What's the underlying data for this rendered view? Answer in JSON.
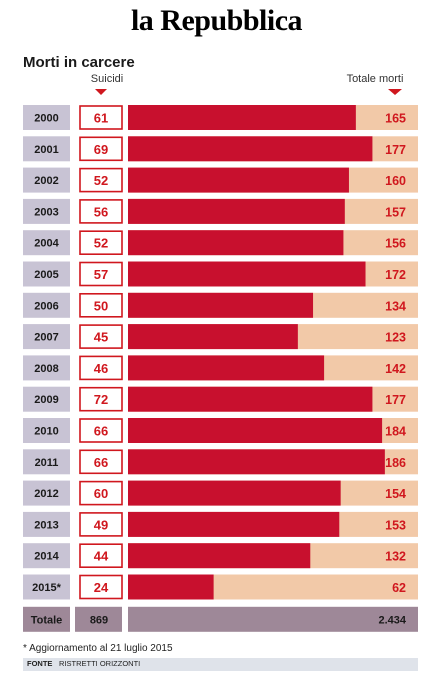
{
  "masthead": "la Repubblica",
  "chart_data": {
    "type": "bar",
    "title": "Morti in carcere",
    "categories": [
      "2000",
      "2001",
      "2002",
      "2003",
      "2004",
      "2005",
      "2006",
      "2007",
      "2008",
      "2009",
      "2010",
      "2011",
      "2012",
      "2013",
      "2014",
      "2015*"
    ],
    "series": [
      {
        "name": "Suicidi",
        "values": [
          61,
          69,
          52,
          56,
          52,
          57,
          50,
          45,
          46,
          72,
          66,
          66,
          60,
          49,
          44,
          24
        ]
      },
      {
        "name": "Totale morti",
        "values": [
          165,
          177,
          160,
          157,
          156,
          172,
          134,
          123,
          142,
          177,
          184,
          186,
          154,
          153,
          132,
          62
        ]
      }
    ],
    "totals": {
      "label": "Totale",
      "suicidi": "869",
      "totale_morti": "2.434"
    },
    "colors": {
      "bar": "#c8102e",
      "track": "#f2c9a8",
      "year_bg": "#c8c3d4",
      "total_bg": "#9e8898",
      "accent": "#d0171e"
    }
  },
  "footnote": "* Aggiornamento al 21 luglio 2015",
  "source": {
    "label": "FONTE",
    "value": "RISTRETTI ORIZZONTI"
  }
}
